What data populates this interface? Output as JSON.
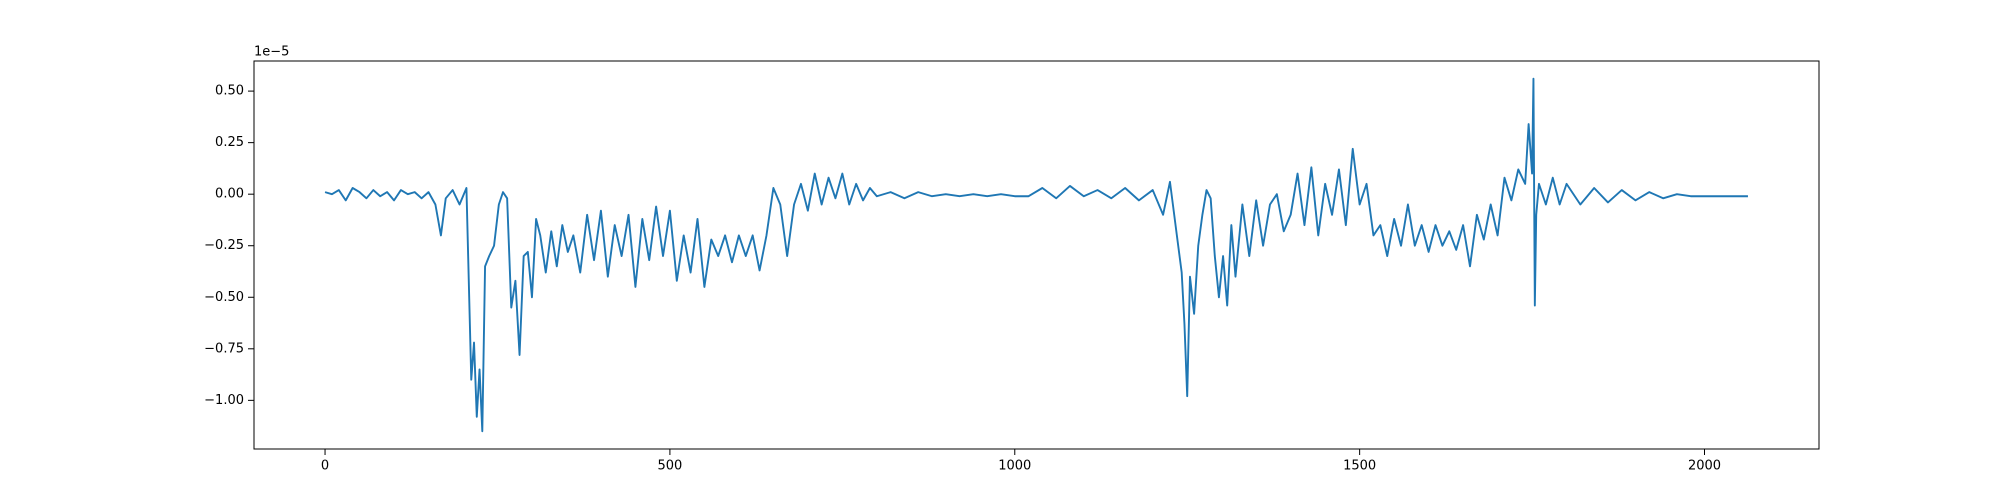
{
  "chart_data": {
    "type": "line",
    "y_axis_offset": "1e−5",
    "x": [
      0,
      10,
      20,
      30,
      40,
      50,
      60,
      70,
      80,
      90,
      100,
      110,
      120,
      130,
      140,
      150,
      160,
      168,
      175,
      185,
      195,
      205,
      212,
      216,
      220,
      224,
      228,
      232,
      238,
      245,
      252,
      258,
      264,
      270,
      276,
      282,
      288,
      294,
      300,
      306,
      312,
      320,
      328,
      336,
      344,
      352,
      360,
      370,
      380,
      390,
      400,
      410,
      420,
      430,
      440,
      450,
      460,
      470,
      480,
      490,
      500,
      510,
      520,
      530,
      540,
      550,
      560,
      570,
      580,
      590,
      600,
      610,
      620,
      630,
      640,
      650,
      660,
      670,
      680,
      690,
      700,
      710,
      720,
      730,
      740,
      750,
      760,
      770,
      780,
      790,
      800,
      820,
      840,
      860,
      880,
      900,
      920,
      940,
      960,
      980,
      1000,
      1020,
      1040,
      1060,
      1080,
      1100,
      1120,
      1140,
      1160,
      1180,
      1200,
      1215,
      1225,
      1235,
      1242,
      1246,
      1250,
      1254,
      1260,
      1266,
      1272,
      1278,
      1284,
      1290,
      1296,
      1302,
      1308,
      1314,
      1320,
      1330,
      1340,
      1350,
      1360,
      1370,
      1380,
      1390,
      1400,
      1410,
      1420,
      1430,
      1440,
      1450,
      1460,
      1470,
      1480,
      1490,
      1500,
      1510,
      1520,
      1530,
      1540,
      1550,
      1560,
      1570,
      1580,
      1590,
      1600,
      1610,
      1620,
      1630,
      1640,
      1650,
      1660,
      1670,
      1680,
      1690,
      1700,
      1710,
      1720,
      1730,
      1740,
      1745,
      1750,
      1752,
      1754,
      1756,
      1760,
      1770,
      1780,
      1790,
      1800,
      1820,
      1840,
      1860,
      1880,
      1900,
      1920,
      1940,
      1960,
      1980,
      2000,
      2020,
      2040,
      2063
    ],
    "series": [
      {
        "color": "#1f77b4",
        "values": [
          0.01,
          0,
          0.02,
          -0.03,
          0.03,
          0.01,
          -0.02,
          0.02,
          -0.01,
          0.01,
          -0.03,
          0.02,
          0,
          0.01,
          -0.02,
          0.01,
          -0.05,
          -0.2,
          -0.02,
          0.02,
          -0.05,
          0.03,
          -0.9,
          -0.72,
          -1.08,
          -0.85,
          -1.15,
          -0.35,
          -0.3,
          -0.25,
          -0.05,
          0.01,
          -0.02,
          -0.55,
          -0.42,
          -0.78,
          -0.3,
          -0.28,
          -0.5,
          -0.12,
          -0.2,
          -0.38,
          -0.18,
          -0.35,
          -0.15,
          -0.28,
          -0.2,
          -0.38,
          -0.1,
          -0.32,
          -0.08,
          -0.4,
          -0.15,
          -0.3,
          -0.1,
          -0.45,
          -0.12,
          -0.32,
          -0.06,
          -0.3,
          -0.08,
          -0.42,
          -0.2,
          -0.38,
          -0.12,
          -0.45,
          -0.22,
          -0.3,
          -0.2,
          -0.33,
          -0.2,
          -0.3,
          -0.2,
          -0.37,
          -0.2,
          0.03,
          -0.05,
          -0.3,
          -0.05,
          0.05,
          -0.08,
          0.1,
          -0.05,
          0.08,
          -0.02,
          0.1,
          -0.05,
          0.05,
          -0.03,
          0.03,
          -0.01,
          0.01,
          -0.02,
          0.01,
          -0.01,
          0,
          -0.01,
          0,
          -0.01,
          0,
          -0.01,
          -0.01,
          0.03,
          -0.02,
          0.04,
          -0.01,
          0.02,
          -0.02,
          0.03,
          -0.03,
          0.02,
          -0.1,
          0.06,
          -0.2,
          -0.38,
          -0.63,
          -0.98,
          -0.4,
          -0.58,
          -0.25,
          -0.1,
          0.02,
          -0.02,
          -0.3,
          -0.5,
          -0.3,
          -0.54,
          -0.15,
          -0.4,
          -0.05,
          -0.3,
          -0.03,
          -0.25,
          -0.05,
          0,
          -0.18,
          -0.1,
          0.1,
          -0.15,
          0.13,
          -0.2,
          0.05,
          -0.1,
          0.12,
          -0.15,
          0.22,
          -0.05,
          0.05,
          -0.2,
          -0.15,
          -0.3,
          -0.12,
          -0.25,
          -0.05,
          -0.25,
          -0.15,
          -0.28,
          -0.15,
          -0.25,
          -0.18,
          -0.27,
          -0.15,
          -0.35,
          -0.1,
          -0.22,
          -0.05,
          -0.2,
          0.08,
          -0.03,
          0.12,
          0.05,
          0.34,
          0.1,
          0.56,
          -0.54,
          -0.1,
          0.05,
          -0.05,
          0.08,
          -0.05,
          0.05,
          -0.05,
          0.03,
          -0.04,
          0.02,
          -0.03,
          0.01,
          -0.02,
          0,
          -0.01,
          -0.01,
          -0.01,
          -0.01,
          -0.01
        ]
      }
    ],
    "xlim": [
      -103,
      2166
    ],
    "ylim": [
      -1.236,
      0.646
    ],
    "xticks": [
      0,
      500,
      1000,
      1500,
      2000
    ],
    "yticks": [
      {
        "value": -1,
        "label": "−1.00"
      },
      {
        "value": -0.75,
        "label": "−0.75"
      },
      {
        "value": -0.5,
        "label": "−0.50"
      },
      {
        "value": -0.25,
        "label": "−0.25"
      },
      {
        "value": 0,
        "label": "0.00"
      },
      {
        "value": 0.25,
        "label": "0.25"
      },
      {
        "value": 0.5,
        "label": "0.50"
      }
    ]
  }
}
